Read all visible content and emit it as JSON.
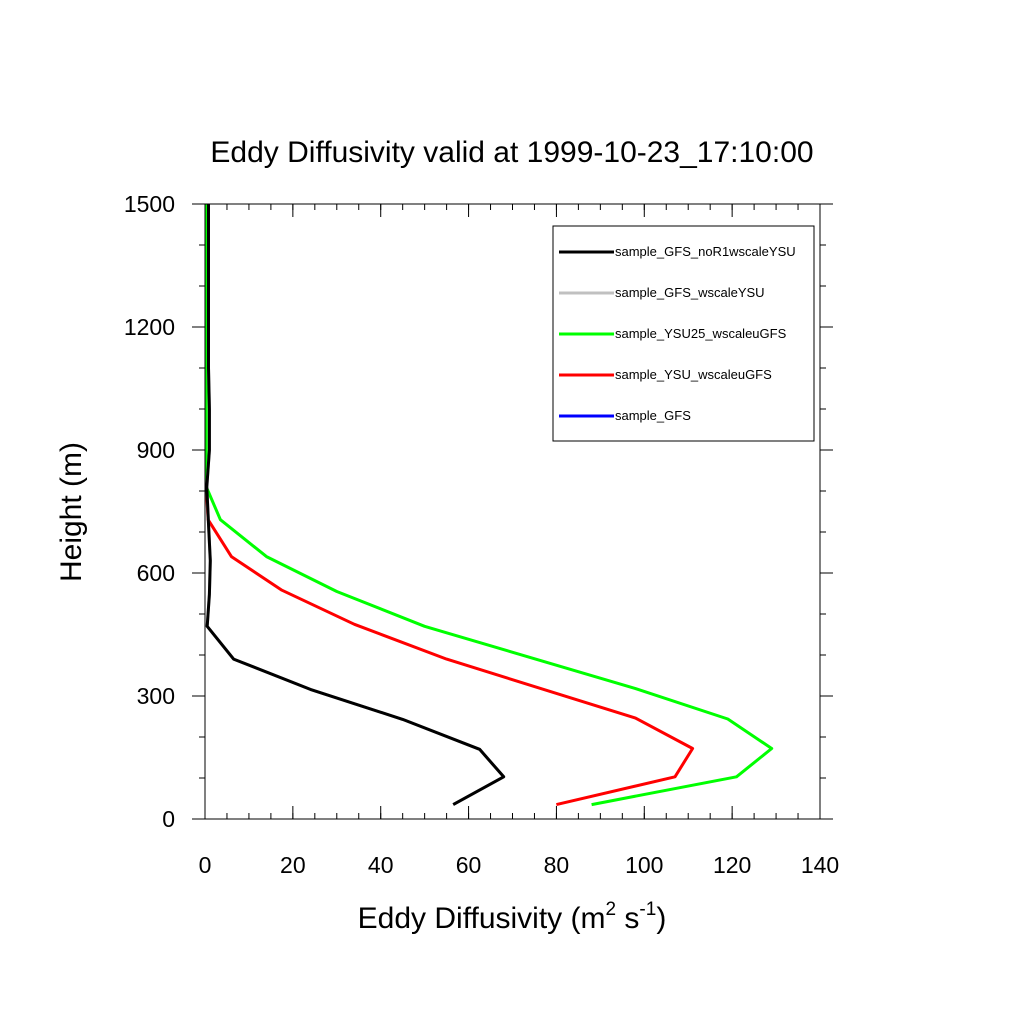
{
  "chart_data": {
    "type": "line",
    "title": "Eddy Diffusivity valid at 1999-10-23_17:10:00",
    "xlabel": "Eddy Diffusivity (m",
    "xlabel_sup1": "2",
    "xlabel_mid": " s",
    "xlabel_sup2": "-1",
    "xlabel_end": ")",
    "ylabel": "Height (m)",
    "xlim": [
      0,
      140
    ],
    "ylim": [
      0,
      1500
    ],
    "xticks": [
      0,
      20,
      40,
      60,
      80,
      100,
      120,
      140
    ],
    "yticks": [
      0,
      300,
      600,
      900,
      1200,
      1500
    ],
    "x_minor_step": 5,
    "y_minor_step": 100,
    "legend_position": "top-right",
    "series": [
      {
        "name": "sample_GFS_noR1wscaleYSU",
        "color": "#000000",
        "points": [
          [
            56.5,
            35
          ],
          [
            68,
            103
          ],
          [
            62.5,
            170
          ],
          [
            45,
            243
          ],
          [
            24,
            316
          ],
          [
            6.5,
            390
          ],
          [
            0.5,
            470
          ],
          [
            1,
            548
          ],
          [
            1.2,
            630
          ],
          [
            0.8,
            720
          ],
          [
            0.4,
            810
          ],
          [
            1,
            900
          ],
          [
            1,
            1000
          ],
          [
            0.8,
            1100
          ],
          [
            0.8,
            1200
          ],
          [
            0.8,
            1300
          ],
          [
            0.8,
            1400
          ],
          [
            0.8,
            1500
          ]
        ]
      },
      {
        "name": "sample_GFS_wscaleYSU",
        "color": "#c0c0c0",
        "points": [
          [
            56.5,
            35
          ],
          [
            68,
            103
          ],
          [
            62.5,
            170
          ],
          [
            45,
            243
          ],
          [
            24,
            316
          ],
          [
            6.5,
            390
          ],
          [
            0.5,
            470
          ],
          [
            1,
            548
          ],
          [
            1.2,
            630
          ],
          [
            0.8,
            720
          ],
          [
            0.4,
            810
          ],
          [
            1,
            900
          ],
          [
            1,
            1000
          ],
          [
            0.8,
            1100
          ],
          [
            0.8,
            1200
          ],
          [
            0.8,
            1300
          ],
          [
            0.8,
            1400
          ],
          [
            0.8,
            1500
          ]
        ]
      },
      {
        "name": "sample_YSU25_wscaleuGFS",
        "color": "#00ff00",
        "points": [
          [
            88,
            35
          ],
          [
            121,
            103
          ],
          [
            129,
            172
          ],
          [
            119,
            244
          ],
          [
            98,
            318
          ],
          [
            50,
            470
          ],
          [
            30,
            555
          ],
          [
            14,
            640
          ],
          [
            3.5,
            730
          ],
          [
            0.3,
            810
          ],
          [
            0.3,
            900
          ],
          [
            0.3,
            1000
          ],
          [
            0.3,
            1100
          ],
          [
            0.3,
            1200
          ],
          [
            0.3,
            1300
          ],
          [
            0.3,
            1400
          ],
          [
            0.3,
            1500
          ]
        ]
      },
      {
        "name": "sample_YSU_wscaleuGFS",
        "color": "#ff0000",
        "points": [
          [
            80,
            35
          ],
          [
            107,
            103
          ],
          [
            111,
            172
          ],
          [
            98,
            246
          ],
          [
            55,
            390
          ],
          [
            34,
            475
          ],
          [
            17.5,
            558
          ],
          [
            6,
            640
          ],
          [
            0.7,
            730
          ],
          [
            0.3,
            810
          ]
        ]
      },
      {
        "name": "sample_GFS",
        "color": "#0000ff",
        "points": []
      }
    ]
  }
}
